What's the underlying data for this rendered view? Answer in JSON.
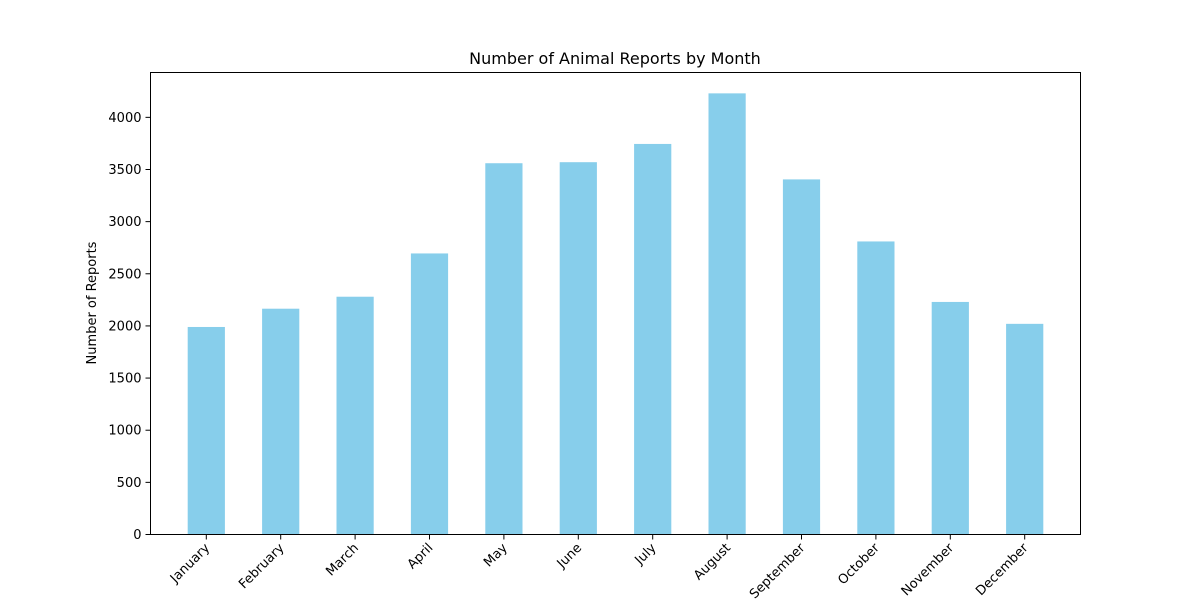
{
  "chart_data": {
    "type": "bar",
    "title": "Number of Animal Reports by Month",
    "xlabel": "",
    "ylabel": "Number of Reports",
    "categories": [
      "January",
      "February",
      "March",
      "April",
      "May",
      "June",
      "July",
      "August",
      "September",
      "October",
      "November",
      "December"
    ],
    "values": [
      1990,
      2165,
      2280,
      2695,
      3560,
      3570,
      3745,
      4230,
      3405,
      2810,
      2230,
      2020
    ],
    "ylim": [
      0,
      4430
    ],
    "yticks": [
      0,
      500,
      1000,
      1500,
      2000,
      2500,
      3000,
      3500,
      4000
    ],
    "grid": false,
    "legend": "none",
    "bar_color": "#87CEEB"
  }
}
